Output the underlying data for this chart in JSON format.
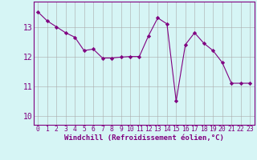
{
  "x": [
    0,
    1,
    2,
    3,
    4,
    5,
    6,
    7,
    8,
    9,
    10,
    11,
    12,
    13,
    14,
    15,
    16,
    17,
    18,
    19,
    20,
    21,
    22,
    23
  ],
  "y": [
    13.5,
    13.2,
    13.0,
    12.8,
    12.65,
    12.2,
    12.25,
    11.95,
    11.95,
    11.98,
    12.0,
    12.0,
    12.7,
    13.3,
    13.1,
    10.5,
    12.4,
    12.8,
    12.45,
    12.2,
    11.8,
    11.1,
    11.1,
    11.1
  ],
  "line_color": "#800080",
  "marker": "D",
  "marker_size": 2.2,
  "bg_color": "#d6f5f5",
  "grid_color": "#aaaaaa",
  "xlabel": "Windchill (Refroidissement éolien,°C)",
  "xlabel_fontsize": 6.5,
  "tick_fontsize": 5.8,
  "ytick_fontsize": 7.0,
  "yticks": [
    10,
    11,
    12,
    13
  ],
  "ylim": [
    9.7,
    13.85
  ],
  "xlim": [
    -0.5,
    23.5
  ]
}
